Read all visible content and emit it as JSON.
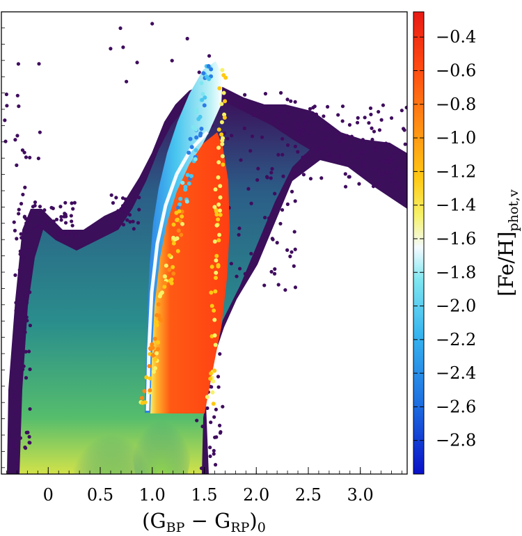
{
  "chart_data": {
    "type": "scatter",
    "title": "",
    "xlabel": {
      "prefix": "(G",
      "sub1": "BP",
      "minus": " − G",
      "sub2": "RP",
      "suffix": ")",
      "sub3": "0"
    },
    "ylabel": "",
    "xlim": [
      -0.45,
      3.45
    ],
    "x_ticks": [
      0,
      0.5,
      1.0,
      1.5,
      2.0,
      2.5,
      3.0
    ],
    "x_tick_labels": [
      "0",
      "0.5",
      "1.0",
      "1.5",
      "2.0",
      "2.5",
      "3.0"
    ],
    "y_axis_labels_shown": false,
    "grid": false,
    "colorbar": {
      "label_main": "[Fe/H]",
      "label_sub": "phot,v",
      "range": [
        -3.0,
        -0.25
      ],
      "ticks": [
        -0.4,
        -0.6,
        -0.8,
        -1.0,
        -1.2,
        -1.4,
        -1.6,
        -1.8,
        -2.0,
        -2.2,
        -2.4,
        -2.6,
        -2.8
      ],
      "tick_labels": [
        "−0.4",
        "−0.6",
        "−0.8",
        "−1.0",
        "−1.2",
        "−1.4",
        "−1.6",
        "−1.8",
        "−2.0",
        "−2.2",
        "−2.4",
        "−2.6",
        "−2.8"
      ],
      "colormap": [
        "#0a10c8",
        "#1e6ee0",
        "#36b4ef",
        "#7fe6f0",
        "#f4fbff",
        "#f6f26a",
        "#ffc914",
        "#ff8a14",
        "#ff4a12",
        "#e81a14"
      ]
    },
    "series": [
      {
        "role": "density background",
        "colormap": [
          "#3b0f5a",
          "#2d6b8c",
          "#2a9a8a",
          "#6ccc5a",
          "#e8e83a"
        ],
        "regions": [
          {
            "x": 0.65,
            "y_mag": 0.95,
            "spread_x": 0.35,
            "density": 1.0
          },
          {
            "x": 1.1,
            "y_mag": 0.95,
            "spread_x": 0.25,
            "density": 0.9
          },
          {
            "x": 0.2,
            "y_mag": 0.55,
            "spread_x": 0.35,
            "density": 0.4
          },
          {
            "x": 1.2,
            "y_mag": 0.45,
            "spread_x": 0.45,
            "density": 0.45
          },
          {
            "x": 1.9,
            "y_mag": 0.25,
            "spread_x": 0.6,
            "density": 0.2
          }
        ]
      },
      {
        "role": "metallicity-coloured giant branch",
        "points_feh_by_color": {
          "bluest_edge": -2.6,
          "ridge_white": -1.6,
          "yellow_zone": -1.3,
          "red_core": -0.3
        }
      }
    ]
  }
}
